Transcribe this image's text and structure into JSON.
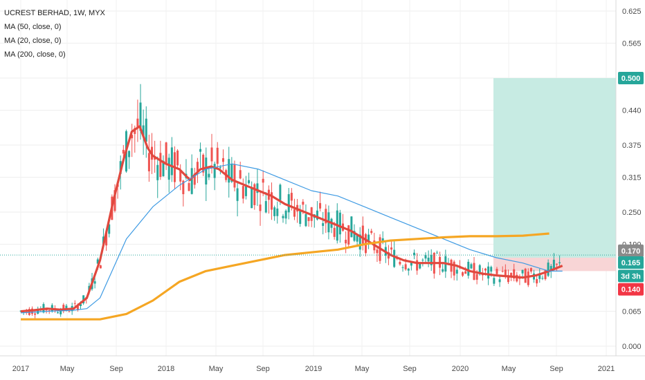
{
  "chart_data": {
    "type": "candlestick",
    "title": "UCREST BERHAD, 1W, MYX",
    "legend": [
      "MA (50, close, 0)",
      "MA (20, close, 0)",
      "MA (200, close, 0)"
    ],
    "y_ticks": [
      "0.625",
      "0.565",
      "0.500",
      "0.440",
      "0.375",
      "0.315",
      "0.250",
      "0.190",
      "0.170",
      "0.165",
      "0.140",
      "0.065",
      "0.000"
    ],
    "x_ticks": [
      "2017",
      "May",
      "Sep",
      "2018",
      "May",
      "Sep",
      "2019",
      "May",
      "Sep",
      "2020",
      "May",
      "Sep",
      "2021"
    ],
    "ylim": [
      -0.02,
      0.65
    ],
    "ma_lines": [
      {
        "name": "MA (20, close, 0)",
        "color": "#e0483e",
        "points": [
          [
            0,
            0.065
          ],
          [
            0.05,
            0.067
          ],
          [
            0.1,
            0.07
          ],
          [
            0.15,
            0.068
          ],
          [
            0.2,
            0.07
          ],
          [
            0.25,
            0.09
          ],
          [
            0.3,
            0.16
          ],
          [
            0.35,
            0.27
          ],
          [
            0.39,
            0.35
          ],
          [
            0.42,
            0.4
          ],
          [
            0.45,
            0.41
          ],
          [
            0.48,
            0.37
          ],
          [
            0.5,
            0.355
          ],
          [
            0.55,
            0.34
          ],
          [
            0.6,
            0.33
          ],
          [
            0.64,
            0.31
          ],
          [
            0.68,
            0.33
          ],
          [
            0.72,
            0.335
          ],
          [
            0.75,
            0.33
          ],
          [
            0.8,
            0.31
          ],
          [
            0.85,
            0.3
          ],
          [
            0.9,
            0.29
          ],
          [
            0.95,
            0.28
          ],
          [
            1.0,
            0.265
          ],
          [
            1.05,
            0.255
          ],
          [
            1.1,
            0.245
          ],
          [
            1.15,
            0.235
          ],
          [
            1.2,
            0.225
          ],
          [
            1.25,
            0.215
          ],
          [
            1.3,
            0.2
          ],
          [
            1.35,
            0.185
          ],
          [
            1.4,
            0.17
          ],
          [
            1.45,
            0.16
          ],
          [
            1.5,
            0.155
          ],
          [
            1.55,
            0.155
          ],
          [
            1.6,
            0.155
          ],
          [
            1.65,
            0.15
          ],
          [
            1.7,
            0.14
          ],
          [
            1.75,
            0.135
          ],
          [
            1.8,
            0.132
          ],
          [
            1.85,
            0.13
          ],
          [
            1.9,
            0.128
          ],
          [
            1.95,
            0.132
          ],
          [
            2.0,
            0.14
          ],
          [
            2.05,
            0.15
          ]
        ]
      },
      {
        "name": "MA (50, close, 0)",
        "color": "#3d9ae3",
        "points": [
          [
            0,
            0.062
          ],
          [
            0.1,
            0.065
          ],
          [
            0.2,
            0.067
          ],
          [
            0.25,
            0.07
          ],
          [
            0.3,
            0.09
          ],
          [
            0.4,
            0.2
          ],
          [
            0.5,
            0.26
          ],
          [
            0.6,
            0.3
          ],
          [
            0.7,
            0.33
          ],
          [
            0.8,
            0.34
          ],
          [
            0.9,
            0.33
          ],
          [
            1.0,
            0.31
          ],
          [
            1.1,
            0.29
          ],
          [
            1.2,
            0.28
          ],
          [
            1.3,
            0.26
          ],
          [
            1.4,
            0.24
          ],
          [
            1.5,
            0.22
          ],
          [
            1.6,
            0.2
          ],
          [
            1.7,
            0.18
          ],
          [
            1.8,
            0.165
          ],
          [
            1.9,
            0.155
          ],
          [
            2.0,
            0.14
          ],
          [
            2.05,
            0.14
          ]
        ]
      },
      {
        "name": "MA (200, close, 0)",
        "color": "#f5a623",
        "points": [
          [
            0,
            0.05
          ],
          [
            0.2,
            0.05
          ],
          [
            0.3,
            0.05
          ],
          [
            0.4,
            0.06
          ],
          [
            0.5,
            0.085
          ],
          [
            0.6,
            0.12
          ],
          [
            0.7,
            0.14
          ],
          [
            0.8,
            0.15
          ],
          [
            0.9,
            0.16
          ],
          [
            1.0,
            0.17
          ],
          [
            1.1,
            0.175
          ],
          [
            1.2,
            0.18
          ],
          [
            1.3,
            0.19
          ],
          [
            1.4,
            0.197
          ],
          [
            1.5,
            0.2
          ],
          [
            1.6,
            0.203
          ],
          [
            1.7,
            0.205
          ],
          [
            1.8,
            0.205
          ],
          [
            1.9,
            0.206
          ],
          [
            2.0,
            0.21
          ]
        ]
      }
    ],
    "position": {
      "entry": 0.165,
      "target": 0.5,
      "stop": 0.14
    },
    "price_labels": {
      "target": "0.500",
      "last_dotted": "0.170",
      "entry": "0.165",
      "timer": "3d 3h",
      "stop": "0.140"
    },
    "colors": {
      "target_zone": "#c7ebe3",
      "stop_zone": "#f8d5d6",
      "label_target": "#26a69a",
      "label_entry": "#26a69a",
      "label_stop": "#f23645",
      "label_last": "#8a8a8a",
      "up": "#26a69a",
      "down": "#ef5350"
    }
  }
}
